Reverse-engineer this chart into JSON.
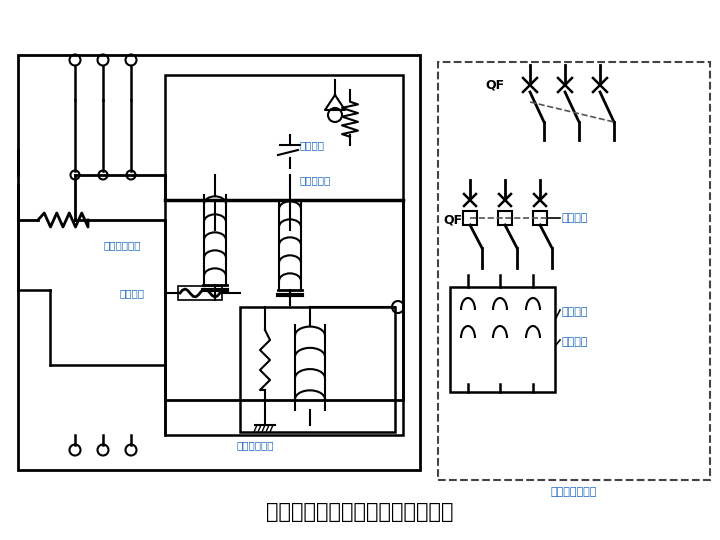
{
  "title": "断路器工作原理示意图及图形符号",
  "title_fontsize": 15,
  "label_color": "#1565C0",
  "line_color": "#000000",
  "bg_color": "#FFFFFF",
  "labels": {
    "overcurrent_trip": "过电流脱扣器",
    "thermal_trip": "热脱扣器",
    "remote_restore": "远控恢复",
    "shunt_trip": "分励脱扣器",
    "undervoltage_trip": "失电压脱扣器",
    "QF": "QF",
    "loss_pressure": "失压保护",
    "overcurrent1": "过流保护",
    "overcurrent2": "过流保护",
    "symbol_label": "断路器图形符号"
  }
}
